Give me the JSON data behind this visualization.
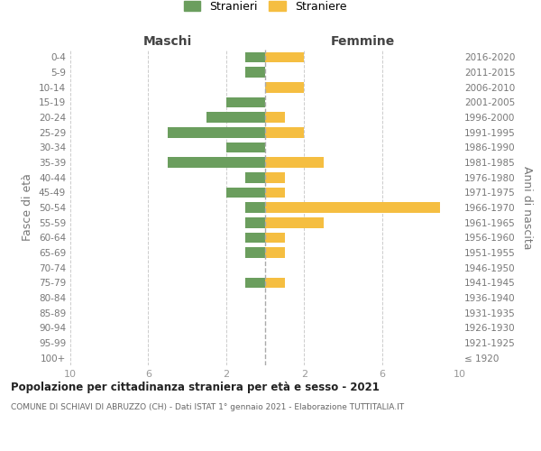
{
  "age_groups": [
    "100+",
    "95-99",
    "90-94",
    "85-89",
    "80-84",
    "75-79",
    "70-74",
    "65-69",
    "60-64",
    "55-59",
    "50-54",
    "45-49",
    "40-44",
    "35-39",
    "30-34",
    "25-29",
    "20-24",
    "15-19",
    "10-14",
    "5-9",
    "0-4"
  ],
  "birth_years": [
    "≤ 1920",
    "1921-1925",
    "1926-1930",
    "1931-1935",
    "1936-1940",
    "1941-1945",
    "1946-1950",
    "1951-1955",
    "1956-1960",
    "1961-1965",
    "1966-1970",
    "1971-1975",
    "1976-1980",
    "1981-1985",
    "1986-1990",
    "1991-1995",
    "1996-2000",
    "2001-2005",
    "2006-2010",
    "2011-2015",
    "2016-2020"
  ],
  "maschi": [
    0,
    0,
    0,
    0,
    0,
    1,
    0,
    1,
    1,
    1,
    1,
    2,
    1,
    5,
    2,
    5,
    3,
    2,
    0,
    1,
    1
  ],
  "femmine": [
    0,
    0,
    0,
    0,
    0,
    1,
    0,
    1,
    1,
    3,
    9,
    1,
    1,
    3,
    0,
    2,
    1,
    0,
    2,
    0,
    2
  ],
  "male_color": "#6b9e5e",
  "female_color": "#f5be41",
  "title": "Popolazione per cittadinanza straniera per età e sesso - 2021",
  "subtitle": "COMUNE DI SCHIAVI DI ABRUZZO (CH) - Dati ISTAT 1° gennaio 2021 - Elaborazione TUTTITALIA.IT",
  "legend_male": "Stranieri",
  "legend_female": "Straniere",
  "xlabel_left": "Maschi",
  "xlabel_right": "Femmine",
  "ylabel_left": "Fasce di età",
  "ylabel_right": "Anni di nascita",
  "xlim": 10,
  "background_color": "#ffffff",
  "grid_color": "#cccccc",
  "bar_height": 0.7,
  "tick_color": "#999999",
  "label_color": "#777777",
  "center_line_color": "#aaaaaa",
  "xticks": [
    -10,
    -6,
    -2,
    2,
    6,
    10
  ],
  "xtick_labels": [
    "10",
    "6",
    "2",
    "2",
    "6",
    "10"
  ]
}
